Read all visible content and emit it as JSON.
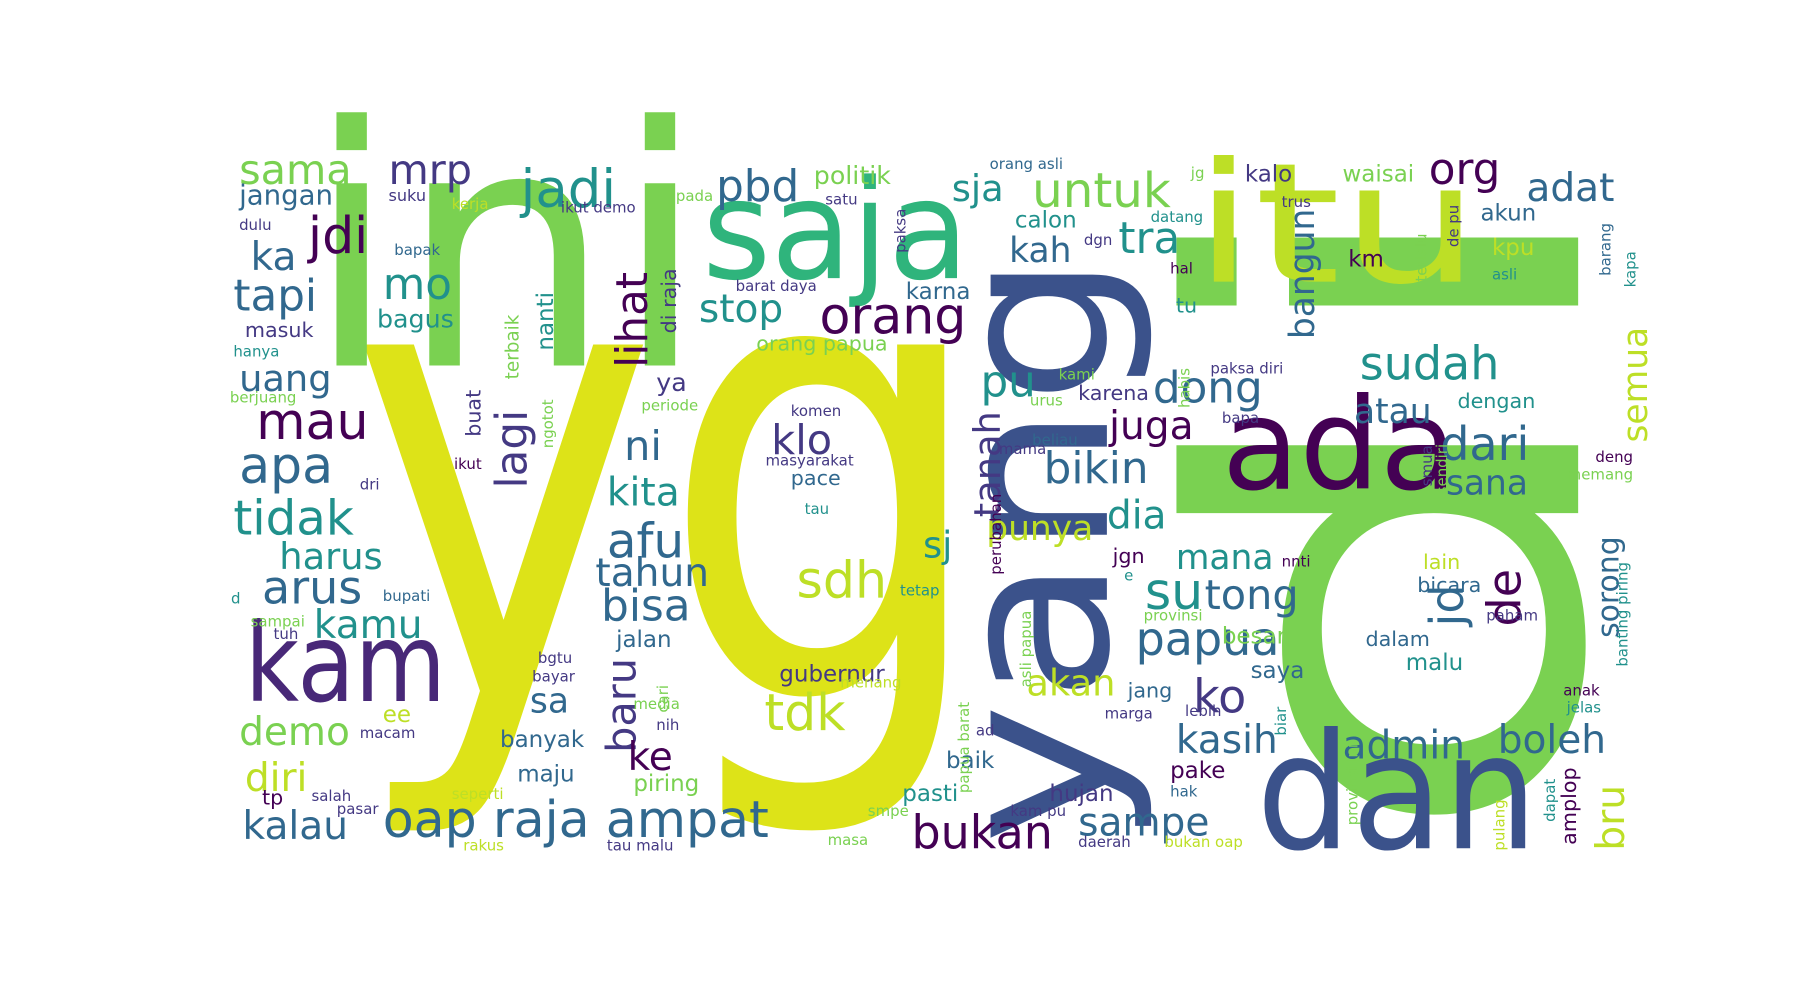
{
  "words": [
    "yg",
    "di",
    "ini",
    "saja",
    "itu",
    "yang",
    "ada",
    "dan",
    "kam",
    "sama",
    "mrp",
    "jadi",
    "pbd",
    "politik",
    "sja",
    "untuk",
    "org",
    "kalo",
    "adat",
    "waisai",
    "jangan",
    "suku",
    "kerja",
    "ikut demo",
    "pada",
    "satu",
    "jdi",
    "dulu",
    "calon",
    "tra",
    "kah",
    "ka",
    "mo",
    "bapak",
    "orang",
    "tapi",
    "stop",
    "lihat",
    "di raja",
    "terbaik",
    "nanti",
    "bagus",
    "masuk",
    "karna",
    "km",
    "tu",
    "bangun",
    "akun",
    "kpu",
    "asli",
    "sudah",
    "semua",
    "orang papua",
    "hanya",
    "uang",
    "mau",
    "lagi",
    "dong",
    "pu",
    "ya",
    "juga",
    "atau",
    "dengan",
    "karena",
    "apa",
    "ni",
    "klo",
    "bikin",
    "dari",
    "sana",
    "kita",
    "tanah",
    "tidak",
    "dia",
    "punya",
    "afu",
    "sdh",
    "sj",
    "harus",
    "arus",
    "tahun",
    "mana",
    "su",
    "tong",
    "jgn",
    "lain",
    "bicara",
    "jd",
    "de",
    "sorong",
    "kamu",
    "bisa",
    "papua",
    "besar",
    "dalam",
    "malu",
    "jalan",
    "gubernur",
    "saya",
    "akan",
    "jang",
    "baru",
    "ke",
    "tdk",
    "sa",
    "demo",
    "ee",
    "kasih",
    "ko",
    "admin",
    "boleh",
    "banyak",
    "diri",
    "maju",
    "piring",
    "baik",
    "pake",
    "bru",
    "pasti",
    "hujan",
    "oap raja ampat",
    "kalau",
    "bukan",
    "sampe",
    "amplop",
    "tp",
    "salah",
    "pasar",
    "seperti",
    "rakus",
    "tau malu",
    "masa",
    "daerah",
    "bukan oap",
    "kam pu",
    "hak",
    "smpe",
    "macam",
    "media",
    "nih",
    "menang",
    "bayar",
    "bgtu",
    "cari",
    "tetap",
    "d",
    "sampai",
    "bupati",
    "tuh",
    "ikut",
    "dri",
    "berjuang",
    "buat",
    "ngotot",
    "periode",
    "komen",
    "masyarakat",
    "pace",
    "tau",
    "kami",
    "urus",
    "beliau",
    "mama",
    "habis",
    "paksa diri",
    "bapa",
    "hal",
    "datang",
    "dgn",
    "jg",
    "orang asli",
    "trus",
    "terlalu",
    "de pu",
    "barang",
    "kapa",
    "paksa",
    "barat daya",
    "nnti",
    "e",
    "provinsi",
    "lebih",
    "marga",
    "ad",
    "biar",
    "provinsi ini",
    "pulang",
    "dapat",
    "anak",
    "jelas",
    "paham",
    "deng",
    "memang",
    "sendiri",
    "smua",
    "banting piring",
    "asli papua",
    "papua barat",
    "perubahan"
  ]
}
